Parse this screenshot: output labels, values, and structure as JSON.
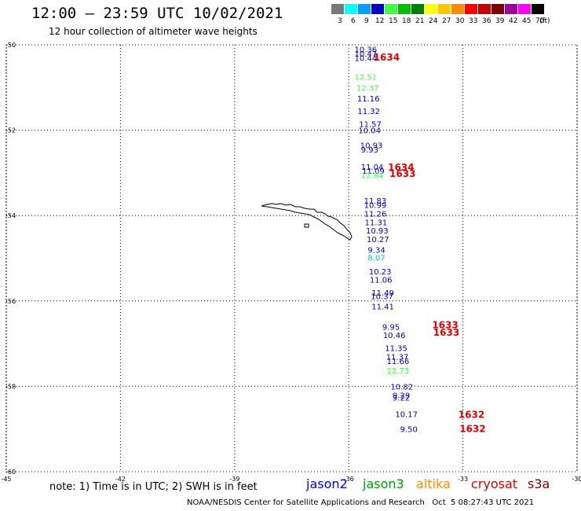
{
  "header": {
    "title": "12:00 — 23:59 UTC 10/02/2021",
    "subtitle": "12 hour collection of altimeter wave heights"
  },
  "legend": {
    "unit": "(ft)",
    "entries": [
      {
        "label": "3",
        "color": "#787878"
      },
      {
        "label": "6",
        "color": "#00ffff"
      },
      {
        "label": "9",
        "color": "#00a0ff"
      },
      {
        "label": "12",
        "color": "#0000c8"
      },
      {
        "label": "15",
        "color": "#40ff40"
      },
      {
        "label": "18",
        "color": "#00c000"
      },
      {
        "label": "21",
        "color": "#008000"
      },
      {
        "label": "24",
        "color": "#ffff00"
      },
      {
        "label": "27",
        "color": "#ffc800"
      },
      {
        "label": "30",
        "color": "#ff8c00"
      },
      {
        "label": "33",
        "color": "#ff0000"
      },
      {
        "label": "36",
        "color": "#c80000"
      },
      {
        "label": "39",
        "color": "#800000"
      },
      {
        "label": "42",
        "color": "#a000a0"
      },
      {
        "label": "45",
        "color": "#ff00ff"
      },
      {
        "label": "70",
        "color": "#000000"
      }
    ]
  },
  "map": {
    "lon_range": [
      -45,
      -30
    ],
    "lat_range": [
      -60,
      -50
    ],
    "lon_ticks": [
      "-45",
      "-42",
      "-39",
      "-36",
      "-33",
      "-30"
    ],
    "lat_ticks": [
      "-50",
      "-52",
      "-54",
      "-56",
      "-58",
      "-60"
    ],
    "grid": "dotted"
  },
  "observations": [
    {
      "lon": -35.85,
      "lat": -50.1,
      "value": "10.36",
      "color": "#0000c8"
    },
    {
      "lon": -35.85,
      "lat": -50.2,
      "value": "10.47",
      "color": "#0000c8"
    },
    {
      "lon": -35.85,
      "lat": -50.3,
      "value": "10.44",
      "color": "#0000c8"
    },
    {
      "lon": -35.85,
      "lat": -50.75,
      "value": "12.51",
      "color": "#40ff40"
    },
    {
      "lon": -35.8,
      "lat": -51.0,
      "value": "12.37",
      "color": "#40ff40"
    },
    {
      "lon": -35.78,
      "lat": -51.25,
      "value": "11.16",
      "color": "#0000c8"
    },
    {
      "lon": -35.77,
      "lat": -51.55,
      "value": "11.32",
      "color": "#0000c8"
    },
    {
      "lon": -35.73,
      "lat": -51.85,
      "value": "11.57",
      "color": "#0000c8"
    },
    {
      "lon": -35.75,
      "lat": -52.0,
      "value": "10.04",
      "color": "#0000c8"
    },
    {
      "lon": -35.7,
      "lat": -52.35,
      "value": "10.93",
      "color": "#0000c8"
    },
    {
      "lon": -35.68,
      "lat": -52.45,
      "value": "9.93",
      "color": "#0000c8"
    },
    {
      "lon": -35.68,
      "lat": -52.85,
      "value": "11.04",
      "color": "#0000c8"
    },
    {
      "lon": -35.65,
      "lat": -52.95,
      "value": "11.09",
      "color": "#0000c8"
    },
    {
      "lon": -35.68,
      "lat": -53.05,
      "value": "12.84",
      "color": "#40ff40"
    },
    {
      "lon": -35.6,
      "lat": -53.65,
      "value": "11.83",
      "color": "#0000c8"
    },
    {
      "lon": -35.6,
      "lat": -53.75,
      "value": "10.99",
      "color": "#0000c8"
    },
    {
      "lon": -35.6,
      "lat": -53.95,
      "value": "11.26",
      "color": "#0000c8"
    },
    {
      "lon": -35.58,
      "lat": -54.15,
      "value": "11.31",
      "color": "#0000c8"
    },
    {
      "lon": -35.55,
      "lat": -54.35,
      "value": "10.93",
      "color": "#0000c8"
    },
    {
      "lon": -35.53,
      "lat": -54.55,
      "value": "10.27",
      "color": "#0000c8"
    },
    {
      "lon": -35.5,
      "lat": -54.8,
      "value": "9.34",
      "color": "#0000c8"
    },
    {
      "lon": -35.5,
      "lat": -54.98,
      "value": "8.07",
      "color": "#00c8c8"
    },
    {
      "lon": -35.47,
      "lat": -55.3,
      "value": "10.23",
      "color": "#0000c8"
    },
    {
      "lon": -35.45,
      "lat": -55.5,
      "value": "11.06",
      "color": "#0000c8"
    },
    {
      "lon": -35.4,
      "lat": -55.8,
      "value": "11.49",
      "color": "#0000c8"
    },
    {
      "lon": -35.42,
      "lat": -55.88,
      "value": "10.37",
      "color": "#0000c8"
    },
    {
      "lon": -35.4,
      "lat": -56.12,
      "value": "11.41",
      "color": "#0000c8"
    },
    {
      "lon": -35.12,
      "lat": -56.6,
      "value": "9.95",
      "color": "#0000c8"
    },
    {
      "lon": -35.1,
      "lat": -56.8,
      "value": "10.46",
      "color": "#0000c8"
    },
    {
      "lon": -35.05,
      "lat": -57.1,
      "value": "11.35",
      "color": "#0000c8"
    },
    {
      "lon": -35.02,
      "lat": -57.3,
      "value": "11.37",
      "color": "#0000c8"
    },
    {
      "lon": -35.0,
      "lat": -57.4,
      "value": "11.66",
      "color": "#0000c8"
    },
    {
      "lon": -35.0,
      "lat": -57.62,
      "value": "12.73",
      "color": "#40ff40"
    },
    {
      "lon": -34.9,
      "lat": -58.0,
      "value": "10.82",
      "color": "#0000c8"
    },
    {
      "lon": -34.85,
      "lat": -58.2,
      "value": "9.29",
      "color": "#0000c8"
    },
    {
      "lon": -34.85,
      "lat": -58.26,
      "value": "9.22",
      "color": "#0000c8"
    },
    {
      "lon": -34.78,
      "lat": -58.65,
      "value": "10.17",
      "color": "#0000c8"
    },
    {
      "lon": -34.65,
      "lat": -59.0,
      "value": "9.50",
      "color": "#0000c8"
    }
  ],
  "time_labels": [
    {
      "lon": -35.35,
      "lat": -50.28,
      "value": "1634"
    },
    {
      "lon": -34.97,
      "lat": -52.85,
      "value": "1634"
    },
    {
      "lon": -34.93,
      "lat": -53.0,
      "value": "1633"
    },
    {
      "lon": -33.81,
      "lat": -56.55,
      "value": "1633"
    },
    {
      "lon": -33.78,
      "lat": -56.72,
      "value": "1633"
    },
    {
      "lon": -33.12,
      "lat": -58.65,
      "value": "1632"
    },
    {
      "lon": -33.09,
      "lat": -58.98,
      "value": "1632"
    }
  ],
  "time_label_color": "#e00000",
  "footer": {
    "note": "note: 1) Time is in UTC; 2) SWH is in feet",
    "satellites": [
      {
        "name": "jason2",
        "color": "#0000ff"
      },
      {
        "name": "jason3",
        "color": "#00a000"
      },
      {
        "name": "altika",
        "color": "#ff8c00"
      },
      {
        "name": "cryosat",
        "color": "#e00000"
      },
      {
        "name": "s3a",
        "color": "#800000"
      }
    ],
    "credit": "NOAA/NESDIS Center for Satellite Applications and Research   Oct  5 08:27:43 UTC 2021"
  }
}
